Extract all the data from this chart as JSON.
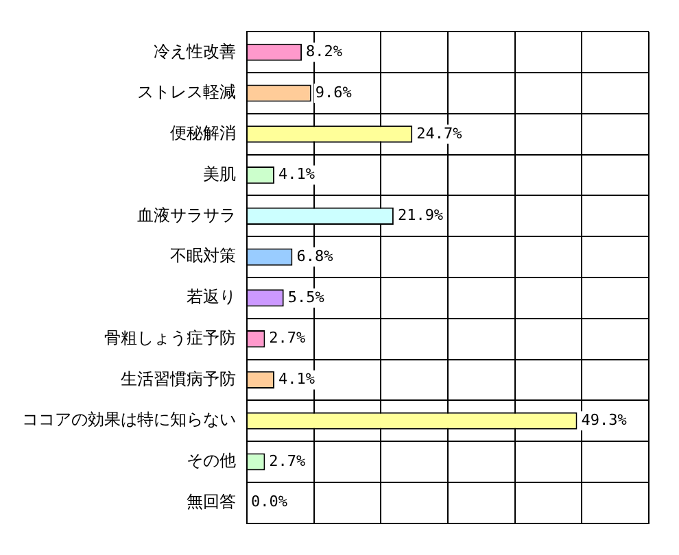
{
  "chart_data": {
    "type": "bar",
    "orientation": "horizontal",
    "categories": [
      "冷え性改善",
      "ストレス軽減",
      "便秘解消",
      "美肌",
      "血液サラサラ",
      "不眠対策",
      "若返り",
      "骨粗しょう症予防",
      "生活習慣病予防",
      "ココアの効果は特に知らない",
      "その他",
      "無回答"
    ],
    "values": [
      8.2,
      9.6,
      24.7,
      4.1,
      21.9,
      6.8,
      5.5,
      2.7,
      4.1,
      49.3,
      2.7,
      0.0
    ],
    "colors": [
      "#ff99cc",
      "#ffcc99",
      "#ffff99",
      "#ccffcc",
      "#ccffff",
      "#99ccff",
      "#cc99ff",
      "#ff99cc",
      "#ffcc99",
      "#ffff99",
      "#ccffcc",
      "#ccffff"
    ],
    "value_labels": [
      "8.2%",
      "9.6%",
      "24.7%",
      "4.1%",
      "21.9%",
      "6.8%",
      "5.5%",
      "2.7%",
      "4.1%",
      "49.3%",
      "2.7%",
      "0.0%"
    ],
    "xlim": [
      0,
      60
    ],
    "tick_labels": "y",
    "grid": true,
    "legend": false
  }
}
